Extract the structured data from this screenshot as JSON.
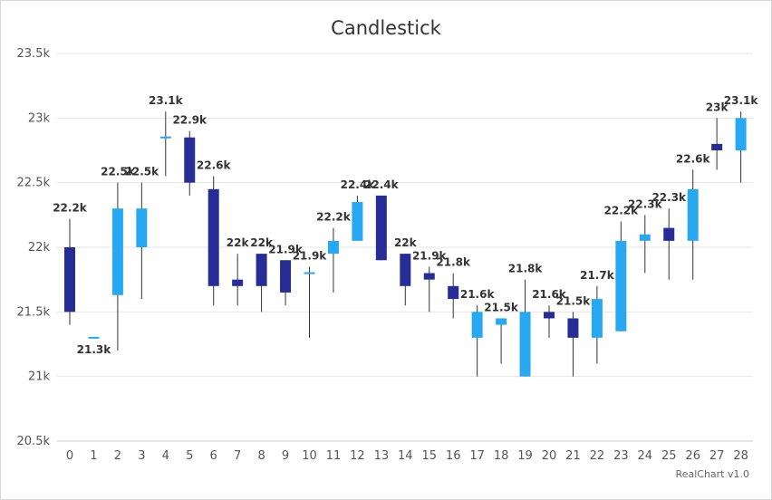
{
  "chart_data": {
    "type": "candlestick",
    "title": "Candlestick",
    "credit": "RealChart v1.0",
    "ylim": [
      20500,
      23500
    ],
    "y_ticks": [
      {
        "value": 20500,
        "label": "20.5k"
      },
      {
        "value": 21000,
        "label": "21k"
      },
      {
        "value": 21500,
        "label": "21.5k"
      },
      {
        "value": 22000,
        "label": "22k"
      },
      {
        "value": 22500,
        "label": "22.5k"
      },
      {
        "value": 23000,
        "label": "23k"
      },
      {
        "value": 23500,
        "label": "23.5k"
      }
    ],
    "grid": true,
    "colors": {
      "rising": "#29a8f2",
      "falling": "#262d96",
      "wick": "#333333",
      "grid": "#e6e6e6"
    },
    "candles": [
      {
        "x": "0",
        "open": 22000,
        "close": 21500,
        "high": 22220,
        "low": 21400,
        "label": "22.2k"
      },
      {
        "x": "1",
        "open": 21300,
        "close": 21300,
        "high": 21300,
        "low": 21300,
        "label": "21.3k"
      },
      {
        "x": "2",
        "open": 21630,
        "close": 22300,
        "high": 22500,
        "low": 21200,
        "label": "22.5k"
      },
      {
        "x": "3",
        "open": 22000,
        "close": 22300,
        "high": 22500,
        "low": 21600,
        "label": "22.5k"
      },
      {
        "x": "4",
        "open": 22850,
        "close": 22850,
        "high": 23050,
        "low": 22550,
        "label": "23.1k"
      },
      {
        "x": "5",
        "open": 22850,
        "close": 22500,
        "high": 22900,
        "low": 22400,
        "label": "22.9k"
      },
      {
        "x": "6",
        "open": 22450,
        "close": 21700,
        "high": 22550,
        "low": 21550,
        "label": "22.6k"
      },
      {
        "x": "7",
        "open": 21750,
        "close": 21700,
        "high": 21950,
        "low": 21550,
        "label": "22k"
      },
      {
        "x": "8",
        "open": 21950,
        "close": 21700,
        "high": 21950,
        "low": 21500,
        "label": "22k"
      },
      {
        "x": "9",
        "open": 21900,
        "close": 21650,
        "high": 21900,
        "low": 21550,
        "label": "21.9k"
      },
      {
        "x": "10",
        "open": 21800,
        "close": 21800,
        "high": 21850,
        "low": 21300,
        "label": "21.9k"
      },
      {
        "x": "11",
        "open": 21950,
        "close": 22050,
        "high": 22150,
        "low": 21650,
        "label": "22.2k"
      },
      {
        "x": "12",
        "open": 22050,
        "close": 22350,
        "high": 22400,
        "low": 22050,
        "label": "22.4k"
      },
      {
        "x": "13",
        "open": 22400,
        "close": 21900,
        "high": 22400,
        "low": 21900,
        "label": "22.4k"
      },
      {
        "x": "14",
        "open": 21950,
        "close": 21700,
        "high": 21950,
        "low": 21550,
        "label": "22k"
      },
      {
        "x": "15",
        "open": 21800,
        "close": 21750,
        "high": 21850,
        "low": 21500,
        "label": "21.9k"
      },
      {
        "x": "16",
        "open": 21700,
        "close": 21600,
        "high": 21800,
        "low": 21450,
        "label": "21.8k"
      },
      {
        "x": "17",
        "open": 21300,
        "close": 21500,
        "high": 21550,
        "low": 21000,
        "label": "21.6k"
      },
      {
        "x": "18",
        "open": 21400,
        "close": 21450,
        "high": 21450,
        "low": 21100,
        "label": "21.5k"
      },
      {
        "x": "19",
        "open": 21000,
        "close": 21500,
        "high": 21750,
        "low": 21000,
        "label": "21.8k"
      },
      {
        "x": "20",
        "open": 21500,
        "close": 21450,
        "high": 21550,
        "low": 21300,
        "label": "21.6k"
      },
      {
        "x": "21",
        "open": 21450,
        "close": 21300,
        "high": 21500,
        "low": 21000,
        "label": "21.5k"
      },
      {
        "x": "22",
        "open": 21300,
        "close": 21600,
        "high": 21700,
        "low": 21100,
        "label": "21.7k"
      },
      {
        "x": "23",
        "open": 21350,
        "close": 22050,
        "high": 22200,
        "low": 21350,
        "label": "22.2k"
      },
      {
        "x": "24",
        "open": 22050,
        "close": 22100,
        "high": 22250,
        "low": 21800,
        "label": "22.3k"
      },
      {
        "x": "25",
        "open": 22150,
        "close": 22050,
        "high": 22300,
        "low": 21750,
        "label": "22.3k"
      },
      {
        "x": "26",
        "open": 22050,
        "close": 22450,
        "high": 22600,
        "low": 21750,
        "label": "22.6k"
      },
      {
        "x": "27",
        "open": 22800,
        "close": 22750,
        "high": 23000,
        "low": 22600,
        "label": "23k"
      },
      {
        "x": "28",
        "open": 22750,
        "close": 23000,
        "high": 23050,
        "low": 22500,
        "label": "23.1k"
      }
    ]
  }
}
